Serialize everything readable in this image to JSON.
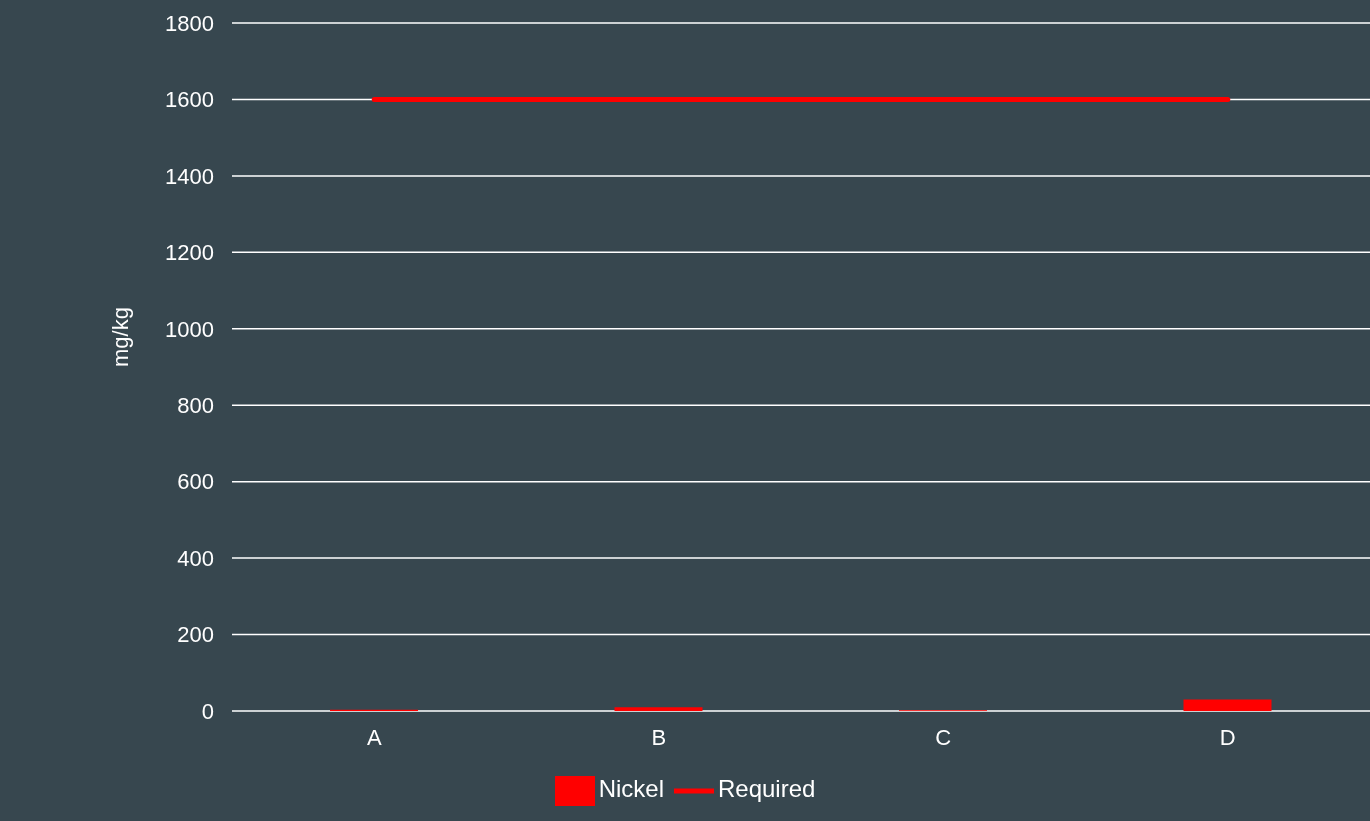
{
  "chart_data": {
    "type": "bar",
    "ylabel": "mg/kg",
    "categories": [
      "A",
      "B",
      "C",
      "D"
    ],
    "series": [
      {
        "name": "Nickel",
        "color": "#ff0000",
        "values": [
          3,
          10,
          2,
          30
        ]
      },
      {
        "name": "Required",
        "type": "line",
        "color": "#ff0000",
        "values": [
          1600,
          1600,
          1600,
          1600
        ]
      }
    ],
    "ylim": [
      0,
      1800
    ],
    "yticks": [
      0,
      200,
      400,
      600,
      800,
      1000,
      1200,
      1400,
      1600,
      1800
    ],
    "grid": "y",
    "legend": "bottom",
    "marker": "none"
  }
}
